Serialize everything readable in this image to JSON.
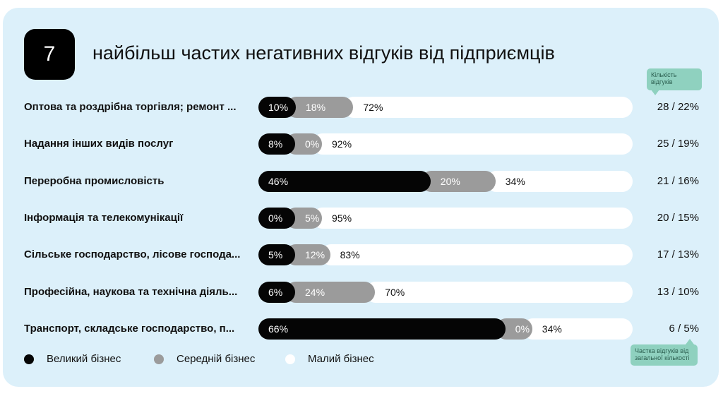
{
  "header": {
    "number": "7",
    "title": "найбільш частих негативних відгуків від підприємців"
  },
  "tooltips": {
    "count_label": "Кількість відгуків",
    "share_label": "Частка відгуків від загальної кількості"
  },
  "legend": [
    {
      "label": "Великий бізнес",
      "color": "#050505"
    },
    {
      "label": "Середній бізнес",
      "color": "#9b9b9b"
    },
    {
      "label": "Малий бізнес",
      "color": "#ffffff"
    }
  ],
  "chart_data": {
    "type": "bar",
    "stacked": true,
    "orientation": "horizontal",
    "title": "найбільш частих негативних відгуків від підприємців",
    "categories": [
      "Оптова та роздрібна торгівля; ремонт ...",
      "Надання інших видів послуг",
      "Переробна промисловість",
      "Інформація та телекомунікації",
      "Сільське господарство, лісове господа...",
      "Професійна, наукова та технічна діяль...",
      "Транспорт, складське господарство, п..."
    ],
    "series": [
      {
        "name": "Великий бізнес",
        "values": [
          10,
          8,
          46,
          0,
          5,
          6,
          66
        ]
      },
      {
        "name": "Середній бізнес",
        "values": [
          18,
          0,
          20,
          5,
          12,
          24,
          0
        ]
      },
      {
        "name": "Малий бізнес",
        "values": [
          72,
          92,
          34,
          95,
          83,
          70,
          34
        ]
      }
    ],
    "labels": [
      [
        "10%",
        "18%",
        "72%"
      ],
      [
        "8%",
        "0%",
        "92%"
      ],
      [
        "46%",
        "20%",
        "34%"
      ],
      [
        "0%",
        "5%",
        "95%"
      ],
      [
        "5%",
        "12%",
        "83%"
      ],
      [
        "6%",
        "24%",
        "70%"
      ],
      [
        "66%",
        "0%",
        "34%"
      ]
    ],
    "counts": [
      "28 / 22%",
      "25 / 19%",
      "21 / 16%",
      "20 / 15%",
      "17 / 13%",
      "13 / 10%",
      "6 / 5%"
    ],
    "legend_position": "bottom-left"
  }
}
